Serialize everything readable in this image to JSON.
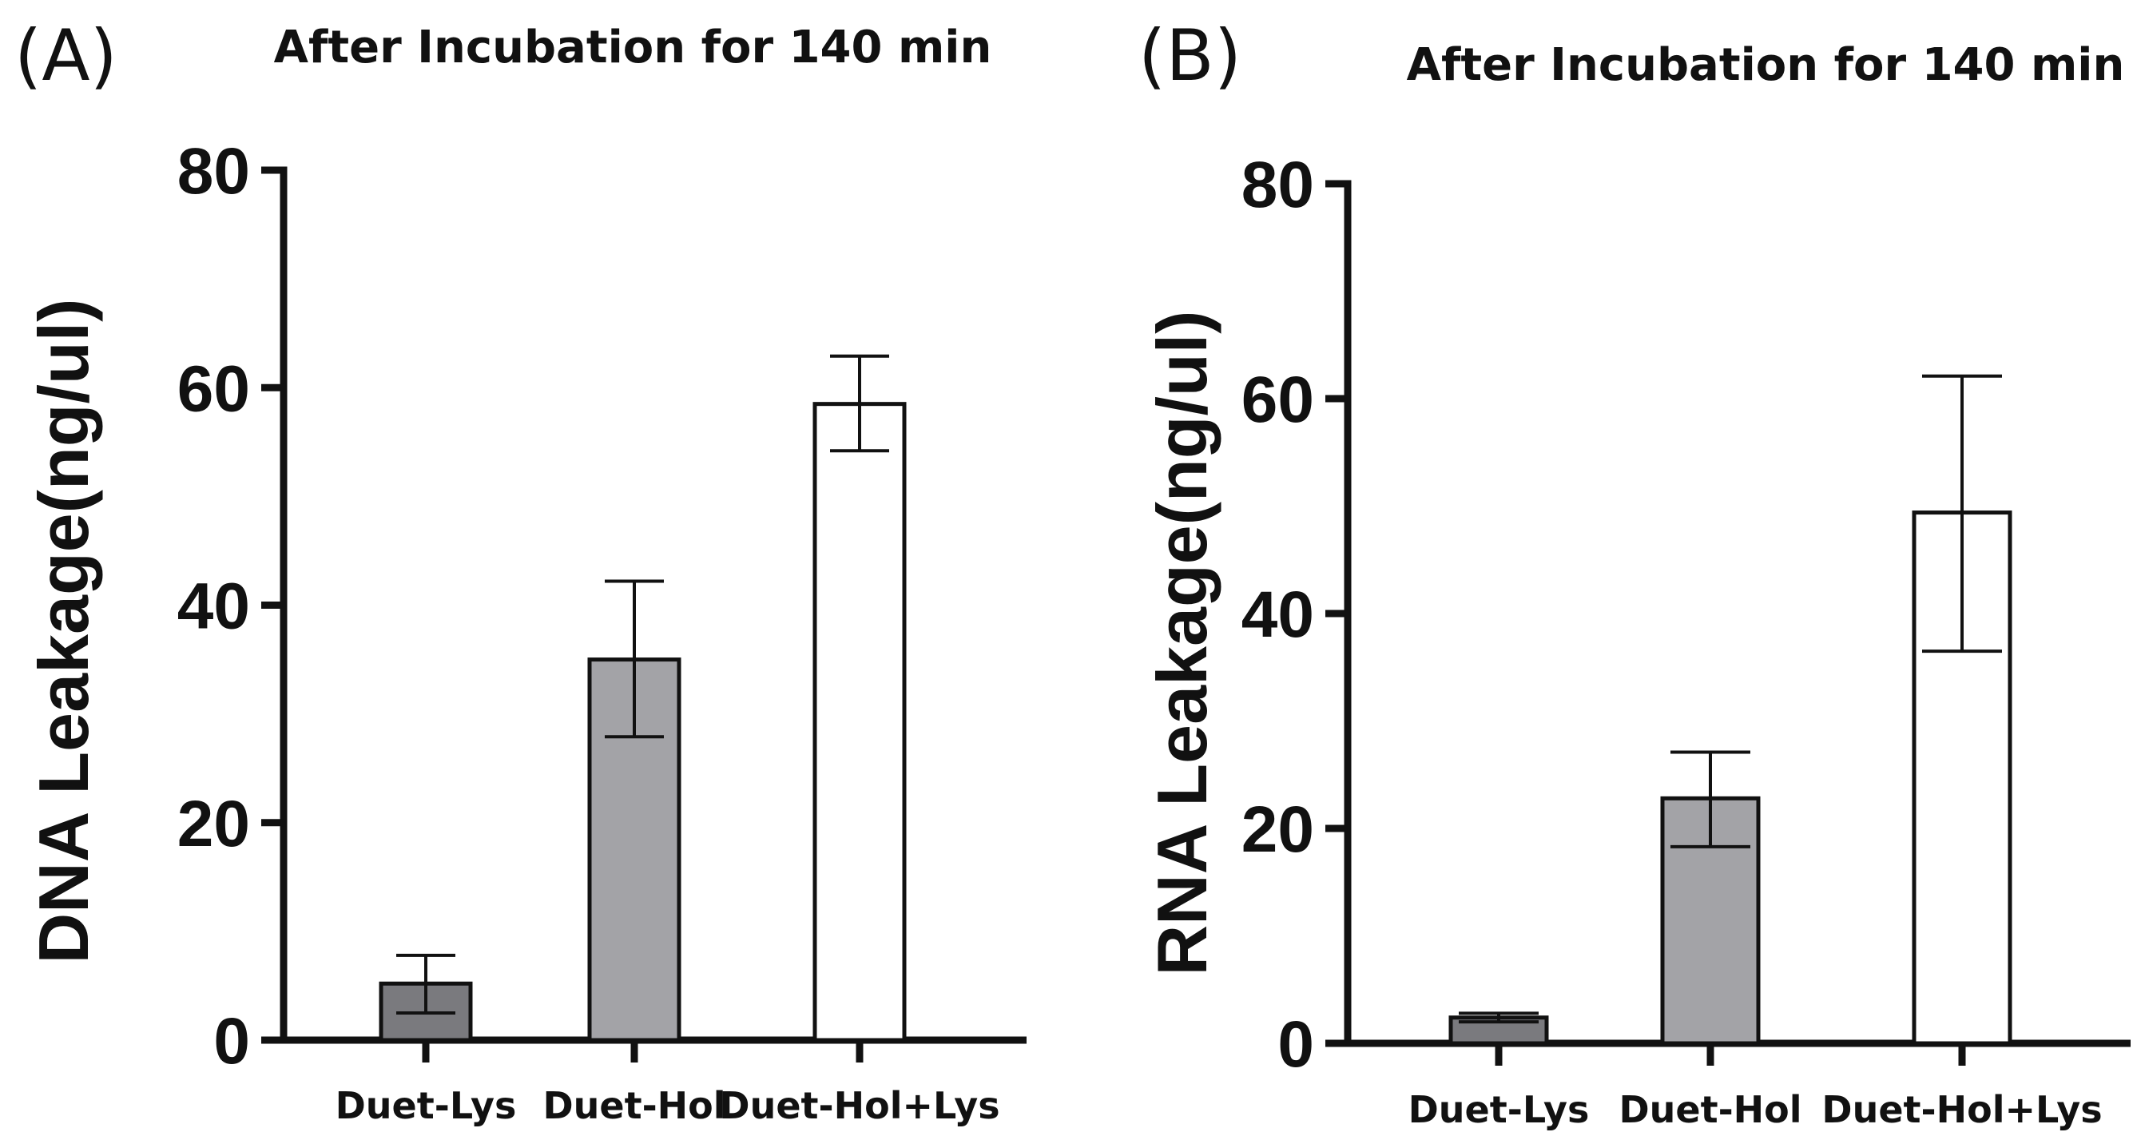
{
  "chart_data": [
    {
      "type": "bar",
      "panel": "(A)",
      "title": "After Incubation for 140 min",
      "xlabel": "",
      "ylabel": "DNA Leakage(ng/ul)",
      "ylim": [
        0,
        80
      ],
      "yticks": [
        0,
        20,
        40,
        60,
        80
      ],
      "categories": [
        "Duet-Lys",
        "Duet-Hol",
        "Duet-Hol+Lys"
      ],
      "values": [
        5.2,
        35.0,
        58.5
      ],
      "err_low": [
        2.5,
        27.9,
        54.2
      ],
      "err_high": [
        7.8,
        42.2,
        62.9
      ],
      "colors": [
        "#7a7a7e",
        "#a3a3a7",
        "#ffffff"
      ]
    },
    {
      "type": "bar",
      "panel": "(B)",
      "title": "After Incubation for 140 min",
      "xlabel": "",
      "ylabel": "RNA Leakage(ng/ul)",
      "ylim": [
        0,
        80
      ],
      "yticks": [
        0,
        20,
        40,
        60,
        80
      ],
      "categories": [
        "Duet-Lys",
        "Duet-Hol",
        "Duet-Hol+Lys"
      ],
      "values": [
        2.4,
        22.8,
        49.4
      ],
      "err_low": [
        2.0,
        18.3,
        36.5
      ],
      "err_high": [
        2.8,
        27.1,
        62.1
      ],
      "colors": [
        "#7a7a7e",
        "#a3a3a7",
        "#ffffff"
      ]
    }
  ]
}
